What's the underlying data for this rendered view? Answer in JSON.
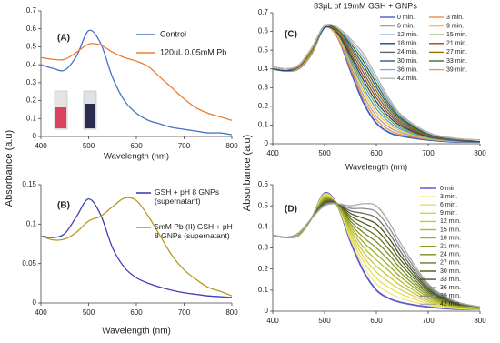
{
  "chart_data": [
    {
      "type": "line",
      "panel_label": "(A)",
      "xlabel": "Wavelength (nm)",
      "ylabel": "Absorbance (a.u)",
      "x": [
        400,
        425,
        450,
        475,
        500,
        525,
        550,
        575,
        600,
        625,
        650,
        675,
        700,
        725,
        750,
        775,
        800
      ],
      "xlim": [
        400,
        800
      ],
      "ylim": [
        0,
        0.7
      ],
      "xticks": [
        400,
        500,
        600,
        700,
        800
      ],
      "yticks": [
        0,
        0.1,
        0.2,
        0.3,
        0.4,
        0.5,
        0.6,
        0.7
      ],
      "series": [
        {
          "name": "Control",
          "color": "#4472c4",
          "values": [
            0.4,
            0.38,
            0.37,
            0.45,
            0.59,
            0.52,
            0.33,
            0.2,
            0.13,
            0.09,
            0.07,
            0.05,
            0.04,
            0.03,
            0.02,
            0.02,
            0.01
          ]
        },
        {
          "name": "120uL 0.05mM Pb",
          "color": "#ed7d31",
          "values": [
            0.44,
            0.43,
            0.43,
            0.47,
            0.515,
            0.51,
            0.47,
            0.44,
            0.42,
            0.39,
            0.33,
            0.27,
            0.21,
            0.16,
            0.13,
            0.11,
            0.09
          ]
        }
      ]
    },
    {
      "type": "line",
      "panel_label": "(B)",
      "xlabel": "Wavelength (nm)",
      "x": [
        400,
        425,
        450,
        475,
        500,
        525,
        550,
        575,
        600,
        625,
        650,
        675,
        700,
        725,
        750,
        775,
        800
      ],
      "xlim": [
        400,
        800
      ],
      "ylim": [
        0,
        0.15
      ],
      "xticks": [
        400,
        500,
        600,
        700,
        800
      ],
      "yticks": [
        0,
        0.05,
        0.1,
        0.15
      ],
      "series": [
        {
          "name": "GSH + pH 8 GNPs (supernatant)",
          "color": "#3f3fb8",
          "values": [
            0.085,
            0.083,
            0.088,
            0.11,
            0.132,
            0.112,
            0.07,
            0.045,
            0.032,
            0.025,
            0.02,
            0.016,
            0.013,
            0.011,
            0.009,
            0.008,
            0.007
          ]
        },
        {
          "name": "5mM Pb (II) GSH + pH 8 GNPs (supernatant)",
          "color": "#b59a1f",
          "values": [
            0.085,
            0.08,
            0.081,
            0.09,
            0.104,
            0.11,
            0.122,
            0.133,
            0.13,
            0.11,
            0.085,
            0.06,
            0.042,
            0.03,
            0.02,
            0.015,
            0.009
          ]
        }
      ]
    },
    {
      "type": "line",
      "panel_label": "(C)",
      "title": "83μL  of 19mM GSH + GNPs",
      "xlabel": "Wavelength (nm)",
      "ylabel": "Absorbance (a.u)",
      "x": [
        400,
        425,
        450,
        475,
        500,
        525,
        550,
        575,
        600,
        625,
        650,
        700,
        750,
        800
      ],
      "xlim": [
        400,
        800
      ],
      "ylim": [
        0,
        0.7
      ],
      "xticks": [
        400,
        500,
        600,
        700,
        800
      ],
      "yticks": [
        0,
        0.1,
        0.2,
        0.3,
        0.4,
        0.5,
        0.6,
        0.7
      ],
      "series": [
        {
          "name": "0 min.",
          "color": "#3c64c8",
          "values": [
            0.4,
            0.39,
            0.4,
            0.48,
            0.62,
            0.57,
            0.39,
            0.22,
            0.11,
            0.06,
            0.04,
            0.02,
            0.01,
            0.01
          ]
        },
        {
          "name": "3 min.",
          "color": "#f08c3c",
          "values": [
            0.4,
            0.39,
            0.4,
            0.48,
            0.62,
            0.57,
            0.403,
            0.24,
            0.129,
            0.074,
            0.048,
            0.023,
            0.012,
            0.01
          ]
        },
        {
          "name": "6 min.",
          "color": "#a5a5a5",
          "values": [
            0.4,
            0.39,
            0.4,
            0.49,
            0.62,
            0.58,
            0.416,
            0.26,
            0.148,
            0.088,
            0.057,
            0.026,
            0.013,
            0.01
          ]
        },
        {
          "name": "9 min.",
          "color": "#f5c242",
          "values": [
            0.4,
            0.39,
            0.41,
            0.49,
            0.62,
            0.58,
            0.429,
            0.28,
            0.168,
            0.102,
            0.065,
            0.029,
            0.015,
            0.01
          ]
        },
        {
          "name": "12 min.",
          "color": "#5b9bd5",
          "values": [
            0.4,
            0.39,
            0.41,
            0.49,
            0.62,
            0.59,
            0.442,
            0.3,
            0.187,
            0.115,
            0.074,
            0.032,
            0.016,
            0.01
          ]
        },
        {
          "name": "15 min.",
          "color": "#70ad47",
          "values": [
            0.4,
            0.39,
            0.41,
            0.49,
            0.62,
            0.59,
            0.455,
            0.32,
            0.206,
            0.129,
            0.082,
            0.035,
            0.018,
            0.01
          ]
        },
        {
          "name": "18 min.",
          "color": "#264478",
          "values": [
            0.4,
            0.39,
            0.41,
            0.5,
            0.62,
            0.59,
            0.468,
            0.34,
            0.225,
            0.143,
            0.091,
            0.038,
            0.019,
            0.01
          ]
        },
        {
          "name": "21 min.",
          "color": "#9e480e",
          "values": [
            0.41,
            0.4,
            0.41,
            0.5,
            0.63,
            0.6,
            0.481,
            0.36,
            0.245,
            0.157,
            0.099,
            0.042,
            0.021,
            0.02
          ]
        },
        {
          "name": "24 min.",
          "color": "#636363",
          "values": [
            0.41,
            0.4,
            0.41,
            0.5,
            0.63,
            0.6,
            0.495,
            0.38,
            0.264,
            0.171,
            0.108,
            0.045,
            0.022,
            0.02
          ]
        },
        {
          "name": "27 min.",
          "color": "#997300",
          "values": [
            0.41,
            0.4,
            0.41,
            0.5,
            0.63,
            0.6,
            0.508,
            0.4,
            0.283,
            0.185,
            0.116,
            0.048,
            0.024,
            0.02
          ]
        },
        {
          "name": "30 min.",
          "color": "#255e91",
          "values": [
            0.41,
            0.4,
            0.42,
            0.51,
            0.63,
            0.61,
            0.521,
            0.42,
            0.302,
            0.198,
            0.125,
            0.051,
            0.025,
            0.02
          ]
        },
        {
          "name": "33 min.",
          "color": "#43682b",
          "values": [
            0.41,
            0.4,
            0.42,
            0.51,
            0.63,
            0.61,
            0.534,
            0.44,
            0.322,
            0.212,
            0.133,
            0.054,
            0.027,
            0.02
          ]
        },
        {
          "name": "36 min.",
          "color": "#7cafdd",
          "values": [
            0.41,
            0.4,
            0.42,
            0.51,
            0.63,
            0.62,
            0.547,
            0.46,
            0.341,
            0.226,
            0.142,
            0.057,
            0.028,
            0.02
          ]
        },
        {
          "name": "39 min.",
          "color": "#f1975a",
          "values": [
            0.41,
            0.4,
            0.42,
            0.51,
            0.63,
            0.62,
            0.56,
            0.48,
            0.36,
            0.24,
            0.15,
            0.06,
            0.03,
            0.02
          ]
        },
        {
          "name": "42 min.",
          "color": "#b7b7b7",
          "values": [
            0.41,
            0.4,
            0.42,
            0.51,
            0.63,
            0.62,
            0.56,
            0.48,
            0.36,
            0.24,
            0.15,
            0.06,
            0.03,
            0.02
          ]
        }
      ]
    },
    {
      "type": "line",
      "panel_label": "(D)",
      "x": [
        400,
        425,
        450,
        475,
        500,
        525,
        550,
        575,
        600,
        625,
        650,
        700,
        750,
        800
      ],
      "xlim": [
        400,
        800
      ],
      "ylim": [
        0,
        0.6
      ],
      "xticks": [
        400,
        500,
        600,
        700,
        800
      ],
      "yticks": [
        0,
        0.1,
        0.2,
        0.3,
        0.4,
        0.5,
        0.6
      ],
      "series": [
        {
          "name": "0 min",
          "color": "#5a5ad2",
          "values": [
            0.36,
            0.35,
            0.36,
            0.44,
            0.56,
            0.5,
            0.33,
            0.19,
            0.1,
            0.06,
            0.04,
            0.02,
            0.01,
            0.01
          ]
        },
        {
          "name": "3 min.",
          "color": "#f2e87a",
          "values": [
            0.36,
            0.35,
            0.36,
            0.44,
            0.556,
            0.5,
            0.342,
            0.213,
            0.129,
            0.086,
            0.059,
            0.028,
            0.013,
            0.01
          ]
        },
        {
          "name": "6 min.",
          "color": "#e8de5a",
          "values": [
            0.36,
            0.35,
            0.36,
            0.44,
            0.551,
            0.5,
            0.354,
            0.236,
            0.157,
            0.111,
            0.079,
            0.036,
            0.016,
            0.01
          ]
        },
        {
          "name": "9 min.",
          "color": "#d8d24a",
          "values": [
            0.36,
            0.35,
            0.36,
            0.44,
            0.547,
            0.5,
            0.366,
            0.259,
            0.186,
            0.137,
            0.098,
            0.044,
            0.019,
            0.01
          ]
        },
        {
          "name": "12 min.",
          "color": "#c6c83c",
          "values": [
            0.36,
            0.35,
            0.36,
            0.44,
            0.543,
            0.5,
            0.379,
            0.281,
            0.214,
            0.163,
            0.117,
            0.051,
            0.021,
            0.01
          ]
        },
        {
          "name": "15 min.",
          "color": "#b4bc34",
          "values": [
            0.36,
            0.35,
            0.36,
            0.44,
            0.539,
            0.5,
            0.391,
            0.304,
            0.243,
            0.189,
            0.136,
            0.059,
            0.024,
            0.01
          ]
        },
        {
          "name": "18 min.",
          "color": "#a0ae2e",
          "values": [
            0.36,
            0.35,
            0.36,
            0.44,
            0.534,
            0.5,
            0.403,
            0.327,
            0.271,
            0.214,
            0.156,
            0.067,
            0.027,
            0.01
          ]
        },
        {
          "name": "21 min.",
          "color": "#8c9c2a",
          "values": [
            0.36,
            0.35,
            0.37,
            0.44,
            0.53,
            0.51,
            0.415,
            0.35,
            0.3,
            0.24,
            0.175,
            0.075,
            0.03,
            0.02
          ]
        },
        {
          "name": "24 min.",
          "color": "#788a28",
          "values": [
            0.36,
            0.35,
            0.37,
            0.44,
            0.526,
            0.51,
            0.427,
            0.373,
            0.329,
            0.266,
            0.194,
            0.083,
            0.033,
            0.02
          ]
        },
        {
          "name": "27 min.",
          "color": "#667826",
          "values": [
            0.36,
            0.35,
            0.37,
            0.44,
            0.521,
            0.51,
            0.439,
            0.396,
            0.357,
            0.291,
            0.214,
            0.091,
            0.036,
            0.02
          ]
        },
        {
          "name": "30 min.",
          "color": "#556624",
          "values": [
            0.36,
            0.35,
            0.37,
            0.44,
            0.517,
            0.51,
            0.451,
            0.419,
            0.386,
            0.317,
            0.233,
            0.099,
            0.039,
            0.02
          ]
        },
        {
          "name": "33 min.",
          "color": "#465622",
          "values": [
            0.36,
            0.35,
            0.37,
            0.44,
            0.513,
            0.51,
            0.464,
            0.441,
            0.414,
            0.343,
            0.252,
            0.106,
            0.041,
            0.02
          ]
        },
        {
          "name": "36 min.",
          "color": "#6e6e6e",
          "values": [
            0.36,
            0.35,
            0.37,
            0.44,
            0.509,
            0.51,
            0.476,
            0.464,
            0.443,
            0.369,
            0.271,
            0.114,
            0.044,
            0.02
          ]
        },
        {
          "name": "39 min.",
          "color": "#8e8e8e",
          "values": [
            0.36,
            0.35,
            0.37,
            0.44,
            0.504,
            0.51,
            0.488,
            0.487,
            0.471,
            0.394,
            0.291,
            0.122,
            0.047,
            0.02
          ]
        },
        {
          "name": "42 min.",
          "color": "#aaaaaa",
          "values": [
            0.36,
            0.35,
            0.37,
            0.44,
            0.5,
            0.51,
            0.5,
            0.51,
            0.5,
            0.42,
            0.31,
            0.13,
            0.05,
            0.02
          ]
        }
      ]
    }
  ]
}
